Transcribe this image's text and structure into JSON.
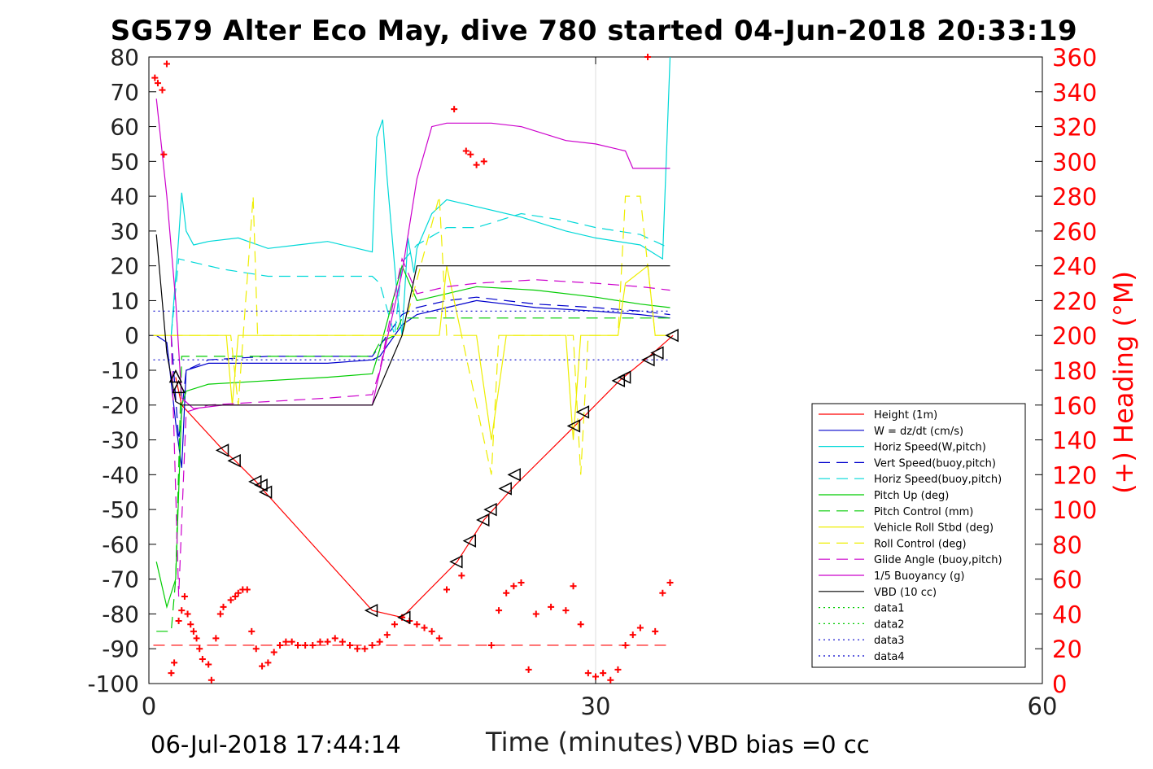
{
  "title": "SG579 Alter Eco May, dive 780 started 04-Jun-2018 20:33:19",
  "footer": {
    "date_stamp": "06-Jul-2018 17:44:14",
    "xlabel": "Time (minutes)",
    "vbd_bias": "VBD bias =0 cc"
  },
  "chart_data": {
    "type": "line",
    "title": "SG579 Alter Eco May, dive 780 started 04-Jun-2018 20:33:19",
    "xlabel": "Time (minutes)",
    "ylabel_left": "",
    "ylabel_right": "(+) Heading (°M)",
    "xlim": [
      0,
      60
    ],
    "ylim_left": [
      -100,
      80
    ],
    "ylim_right": [
      0,
      360
    ],
    "x_ticks": [
      "0",
      "30",
      "60"
    ],
    "y_ticks_left": [
      "80",
      "70",
      "60",
      "50",
      "40",
      "30",
      "20",
      "10",
      "0",
      "-10",
      "-20",
      "-30",
      "-40",
      "-50",
      "-60",
      "-70",
      "-80",
      "-90",
      "-100"
    ],
    "y_ticks_right": [
      "360",
      "340",
      "320",
      "300",
      "280",
      "260",
      "240",
      "220",
      "200",
      "180",
      "160",
      "140",
      "120",
      "100",
      "80",
      "60",
      "40",
      "20",
      "0"
    ],
    "grid": "x-only at 30",
    "legend_position": "lower-right",
    "colors": {
      "heading": "#ff0000"
    },
    "series": [
      {
        "name": "Height (1m)",
        "color": "#ff0000",
        "style": "solid",
        "x": [
          1.8,
          2.2,
          5.0,
          5.8,
          7.2,
          7.8,
          15,
          17,
          20.7,
          22.5,
          24.6,
          28.6,
          31.6,
          33.6,
          35.2
        ],
        "y": [
          -12,
          -20,
          -33,
          -36,
          -42,
          -45,
          -79,
          -81,
          -65,
          -53,
          -43,
          -26,
          -13,
          -6,
          0
        ]
      },
      {
        "name": "W = dz/dt (cm/s)",
        "color": "#0000cc",
        "style": "solid",
        "x": [
          0.5,
          1.2,
          1.8,
          2.2,
          2.5,
          4,
          8,
          12,
          15,
          15.5,
          17,
          18,
          20,
          22,
          26,
          30,
          33,
          35
        ],
        "y": [
          0,
          -2,
          -25,
          -38,
          -10,
          -8,
          -8,
          -8,
          -7,
          -6,
          3,
          6,
          8,
          10,
          8,
          7,
          6,
          5
        ]
      },
      {
        "name": "Horiz Speed(W,pitch)",
        "color": "#00d8d8",
        "style": "solid",
        "x": [
          1.5,
          2,
          2.2,
          2.5,
          3,
          4,
          6,
          8,
          10,
          12,
          14,
          15,
          15.3,
          15.7,
          16,
          16.6,
          17,
          17.4,
          17.8,
          18,
          19,
          20,
          22,
          25,
          28,
          30,
          33,
          34.5,
          35
        ],
        "y": [
          0,
          28,
          41,
          30,
          26,
          27,
          28,
          25,
          26,
          27,
          25,
          24,
          57,
          62,
          45,
          15,
          0,
          28,
          18,
          25,
          35,
          39,
          37,
          34,
          30,
          28,
          26,
          22,
          80
        ]
      },
      {
        "name": "Vert Speed(buoy,pitch)",
        "color": "#0000cc",
        "style": "dashed",
        "x": [
          1.5,
          2,
          2.5,
          4,
          8,
          12,
          15,
          16,
          17,
          18,
          20,
          22,
          26,
          30,
          33,
          35
        ],
        "y": [
          0,
          -30,
          -10,
          -7,
          -6,
          -6,
          -6,
          0,
          6,
          8,
          10,
          11,
          9,
          8,
          7,
          6
        ]
      },
      {
        "name": "Horiz Speed(buoy,pitch)",
        "color": "#00d8d8",
        "style": "dashed",
        "x": [
          1.5,
          2,
          3,
          5,
          8,
          12,
          15,
          15.5,
          16.5,
          17,
          18,
          20,
          22,
          25,
          28,
          30,
          33,
          35
        ],
        "y": [
          0,
          22,
          21,
          19,
          17,
          17,
          17,
          15,
          0,
          21,
          26,
          31,
          31,
          35,
          33,
          31,
          29,
          25
        ]
      },
      {
        "name": "Pitch Up (deg)",
        "color": "#00cc00",
        "style": "solid",
        "x": [
          0.5,
          1.2,
          1.8,
          2.2,
          2.5,
          4,
          8,
          12,
          15,
          15.5,
          17,
          17.5,
          18,
          20,
          22,
          26,
          30,
          33,
          35
        ],
        "y": [
          -65,
          -78,
          -70,
          -20,
          -16,
          -14,
          -13,
          -12,
          -11,
          -4,
          20,
          15,
          10,
          12,
          14,
          13,
          11,
          9,
          8
        ]
      },
      {
        "name": "Pitch Control (mm)",
        "color": "#00cc00",
        "style": "dashed",
        "x": [
          0.5,
          1.5,
          1.8,
          2.2,
          4,
          8,
          12,
          15,
          15.5,
          16.5,
          17,
          18,
          22,
          26,
          30,
          33,
          35
        ],
        "y": [
          -85,
          -85,
          -70,
          -6,
          -6,
          -6,
          -6,
          -6,
          -2,
          0,
          5,
          5,
          5,
          5,
          5,
          5,
          5
        ]
      },
      {
        "name": "Vehicle Roll Stbd (deg)",
        "color": "#eeee00",
        "style": "solid",
        "x": [
          0.3,
          2,
          4,
          5.2,
          5.6,
          6,
          7,
          8,
          10,
          12,
          15,
          17,
          18,
          19.5,
          20,
          21,
          22,
          23,
          24,
          26,
          28,
          28.5,
          29,
          30,
          31.5,
          32,
          33.5,
          34,
          35
        ],
        "y": [
          0,
          0,
          0,
          0,
          -20,
          0,
          0,
          0,
          0,
          0,
          0,
          0,
          0,
          0,
          20,
          0,
          0,
          -30,
          0,
          0,
          0,
          -30,
          0,
          0,
          0,
          15,
          20,
          0,
          0
        ]
      },
      {
        "name": "Roll Control (deg)",
        "color": "#eeee00",
        "style": "dashed",
        "x": [
          0.3,
          2,
          5.5,
          6,
          7,
          7.3,
          8,
          12,
          15,
          17,
          19.5,
          20,
          21,
          23,
          23.5,
          24,
          28.5,
          29,
          29.5,
          31.5,
          32,
          33,
          34,
          35
        ],
        "y": [
          0,
          0,
          0,
          -20,
          40,
          0,
          0,
          0,
          0,
          0,
          40,
          0,
          0,
          -40,
          0,
          0,
          0,
          -40,
          0,
          0,
          40,
          40,
          0,
          0
        ]
      },
      {
        "name": "Glide Angle (buoy,pitch)",
        "color": "#cc00cc",
        "style": "dashed",
        "x": [
          1.5,
          2,
          2.5,
          4,
          8,
          12,
          15,
          15.5,
          17,
          18,
          20,
          22,
          26,
          30,
          33,
          35
        ],
        "y": [
          0,
          -75,
          -22,
          -20,
          -19,
          -18,
          -17,
          -10,
          22,
          12,
          14,
          15,
          16,
          15,
          14,
          13
        ]
      },
      {
        "name": "1/5 Buoyancy (g)",
        "color": "#cc00cc",
        "style": "solid",
        "x": [
          0.5,
          1.2,
          1.8,
          2.2,
          3,
          5,
          8,
          12,
          15,
          17,
          18,
          19,
          20,
          23,
          25,
          28,
          30,
          32,
          32.5,
          35
        ],
        "y": [
          68,
          40,
          10,
          -18,
          -21,
          -20,
          -20,
          -20,
          -20,
          18,
          45,
          60,
          61,
          61,
          60,
          56,
          55,
          53,
          48,
          48
        ]
      },
      {
        "name": "VBD (10 cc)",
        "color": "#000000",
        "style": "solid",
        "x": [
          0.5,
          1.2,
          1.8,
          2.2,
          3,
          5,
          8,
          12,
          15,
          17,
          18,
          19,
          20,
          25,
          30,
          35
        ],
        "y": [
          29,
          -5,
          -19,
          -20,
          -20,
          -20,
          -20,
          -20,
          -20,
          0,
          20,
          20,
          20,
          20,
          20,
          20
        ]
      },
      {
        "name": "data1",
        "color": "#00cc00",
        "style": "dotted",
        "x": [],
        "y": []
      },
      {
        "name": "data2",
        "color": "#00cc00",
        "style": "dotted",
        "x": [],
        "y": []
      },
      {
        "name": "data3",
        "color": "#0000cc",
        "style": "dotted",
        "x": [
          0.3,
          35
        ],
        "y": [
          7,
          7
        ]
      },
      {
        "name": "data4",
        "color": "#0000cc",
        "style": "dotted",
        "x": [
          0.3,
          35
        ],
        "y": [
          -7,
          -7
        ]
      }
    ],
    "heading": {
      "axis": "right",
      "marker": "+",
      "reference_line": 22,
      "x": [
        0.4,
        0.6,
        0.9,
        1.0,
        1.2,
        1.5,
        1.7,
        2.0,
        2.2,
        2.4,
        2.6,
        2.8,
        3.0,
        3.2,
        3.4,
        3.6,
        4.0,
        4.2,
        4.5,
        4.8,
        5.0,
        5.5,
        5.8,
        6.0,
        6.3,
        6.6,
        6.9,
        7.2,
        7.6,
        8.0,
        8.4,
        8.8,
        9.2,
        9.6,
        10,
        10.5,
        11,
        11.5,
        12,
        12.5,
        13,
        13.5,
        14,
        14.5,
        15,
        15.5,
        16,
        16.5,
        17,
        17.5,
        18,
        18.5,
        19,
        19.5,
        20,
        20.5,
        21,
        21.3,
        21.6,
        22,
        22.5,
        23,
        23.5,
        24,
        24.5,
        25,
        25.5,
        26,
        27,
        28,
        28.5,
        29,
        29.5,
        30,
        30.5,
        31,
        31.5,
        32,
        32.5,
        33,
        33.5,
        34,
        34.5,
        35
      ],
      "y": [
        348,
        345,
        341,
        304,
        356,
        6,
        12,
        36,
        42,
        50,
        40,
        34,
        30,
        26,
        20,
        14,
        11,
        2,
        26,
        40,
        44,
        48,
        50,
        52,
        54,
        54,
        30,
        20,
        10,
        12,
        18,
        22,
        24,
        24,
        22,
        22,
        22,
        24,
        24,
        26,
        24,
        22,
        20,
        20,
        22,
        24,
        28,
        34,
        38,
        36,
        34,
        32,
        30,
        26,
        54,
        330,
        62,
        306,
        304,
        298,
        300,
        22,
        42,
        52,
        56,
        58,
        8,
        40,
        44,
        42,
        56,
        34,
        6,
        4,
        6,
        2,
        8,
        22,
        28,
        32,
        360,
        30,
        52,
        58
      ]
    },
    "markers": {
      "triangles_up_x": [
        1.8,
        2.0
      ],
      "triangles_up_y": [
        -12,
        -15
      ],
      "triangles_left_x": [
        5.0,
        5.8,
        7.2,
        7.6,
        7.9,
        15,
        17.2,
        20.7,
        21.6,
        22.5,
        23,
        24,
        24.6,
        28.6,
        29.2,
        31.6,
        32,
        33.6,
        34.2,
        35.2
      ],
      "triangles_left_y": [
        -33,
        -36,
        -42,
        -43,
        -45,
        -79,
        -81,
        -65,
        -59,
        -53,
        -50,
        -44,
        -40,
        -26,
        -22,
        -13,
        -12,
        -7,
        -5,
        0
      ]
    }
  }
}
